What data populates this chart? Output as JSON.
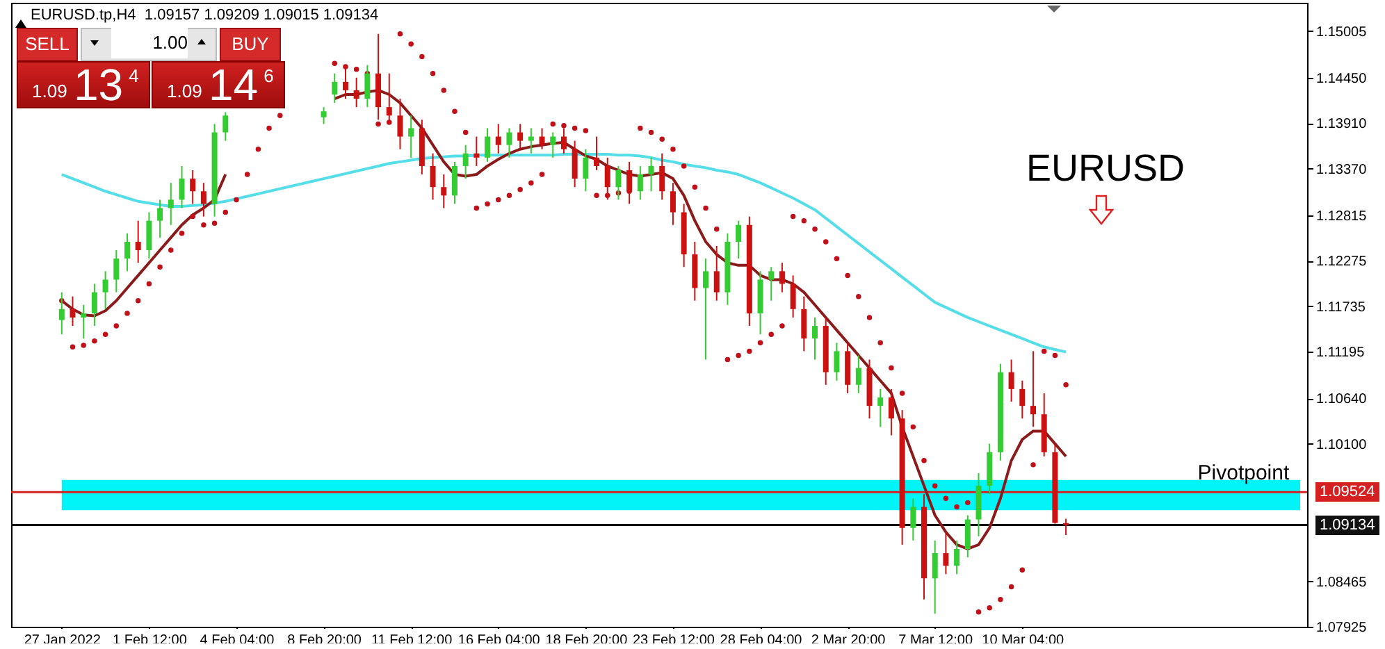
{
  "chart_data": {
    "type": "candlestick",
    "title": "EURUSD.tp,H4  1.09157 1.09209 1.09015 1.09134",
    "categories": [
      "27 Jan 2022",
      null,
      null,
      null,
      null,
      null,
      null,
      null,
      "1 Feb 12:00",
      null,
      null,
      null,
      null,
      null,
      null,
      null,
      "4 Feb 04:00",
      null,
      null,
      null,
      null,
      null,
      null,
      null,
      "8 Feb 20:00",
      null,
      null,
      null,
      null,
      null,
      null,
      null,
      "11 Feb 12:00",
      null,
      null,
      null,
      null,
      null,
      null,
      null,
      "16 Feb 04:00",
      null,
      null,
      null,
      null,
      null,
      null,
      null,
      "18 Feb 20:00",
      null,
      null,
      null,
      null,
      null,
      null,
      null,
      "23 Feb 12:00",
      null,
      null,
      null,
      null,
      null,
      null,
      null,
      "28 Feb 04:00",
      null,
      null,
      null,
      null,
      null,
      null,
      null,
      "2 Mar 20:00",
      null,
      null,
      null,
      null,
      null,
      null,
      null,
      "7 Mar 12:00",
      null,
      null,
      null,
      null,
      null,
      null,
      null,
      "10 Mar 04:00",
      null,
      null,
      null,
      null
    ],
    "ohlc": [
      [
        1.1157,
        1.119,
        1.114,
        1.117
      ],
      [
        1.117,
        1.1185,
        1.115,
        1.116
      ],
      [
        1.116,
        1.1175,
        1.1135,
        1.1165
      ],
      [
        1.1165,
        1.12,
        1.115,
        1.119
      ],
      [
        1.119,
        1.1215,
        1.117,
        1.1205
      ],
      [
        1.1205,
        1.124,
        1.119,
        1.123
      ],
      [
        1.123,
        1.126,
        1.1215,
        1.125
      ],
      [
        1.125,
        1.1275,
        1.1225,
        1.124
      ],
      [
        1.124,
        1.1285,
        1.123,
        1.1275
      ],
      [
        1.1275,
        1.13,
        1.1255,
        1.129
      ],
      [
        1.129,
        1.132,
        1.127,
        1.13
      ],
      [
        1.13,
        1.134,
        1.129,
        1.1325
      ],
      [
        1.1325,
        1.1335,
        1.1295,
        1.131
      ],
      [
        1.131,
        1.132,
        1.128,
        1.1295
      ],
      [
        1.1295,
        1.139,
        1.128,
        1.138
      ],
      [
        1.138,
        1.1404,
        1.137,
        1.14
      ],
      null,
      null,
      null,
      null,
      null,
      null,
      null,
      null,
      [
        1.1398,
        1.141,
        1.139,
        1.1405
      ],
      [
        1.1425,
        1.145,
        1.1415,
        1.144
      ],
      [
        1.144,
        1.146,
        1.142,
        1.143
      ],
      [
        1.143,
        1.1445,
        1.141,
        1.142
      ],
      [
        1.142,
        1.146,
        1.141,
        1.145
      ],
      [
        1.145,
        1.1497,
        1.1395,
        1.141
      ],
      [
        1.141,
        1.145,
        1.139,
        1.14
      ],
      [
        1.14,
        1.142,
        1.136,
        1.1375
      ],
      [
        1.1375,
        1.14,
        1.135,
        1.1385
      ],
      [
        1.1385,
        1.1395,
        1.133,
        1.134
      ],
      [
        1.134,
        1.1355,
        1.13,
        1.1315
      ],
      [
        1.1315,
        1.133,
        1.129,
        1.1305
      ],
      [
        1.1305,
        1.1345,
        1.1295,
        1.134
      ],
      [
        1.134,
        1.1365,
        1.1325,
        1.1355
      ],
      [
        1.1355,
        1.1375,
        1.134,
        1.135
      ],
      [
        1.135,
        1.1385,
        1.1345,
        1.1375
      ],
      [
        1.1375,
        1.139,
        1.1355,
        1.1365
      ],
      [
        1.1365,
        1.1385,
        1.135,
        1.138
      ],
      [
        1.138,
        1.139,
        1.136,
        1.137
      ],
      [
        1.137,
        1.1385,
        1.1355,
        1.1375
      ],
      [
        1.1375,
        1.1385,
        1.136,
        1.1365
      ],
      [
        1.1365,
        1.138,
        1.135,
        1.1375
      ],
      [
        1.1375,
        1.1385,
        1.1355,
        1.136
      ],
      [
        1.136,
        1.137,
        1.1315,
        1.1325
      ],
      [
        1.1325,
        1.136,
        1.131,
        1.135
      ],
      [
        1.135,
        1.1375,
        1.1335,
        1.134
      ],
      [
        1.134,
        1.135,
        1.13,
        1.1315
      ],
      [
        1.1315,
        1.134,
        1.13,
        1.1335
      ],
      [
        1.1335,
        1.1345,
        1.1295,
        1.131
      ],
      [
        1.131,
        1.134,
        1.13,
        1.133
      ],
      [
        1.133,
        1.135,
        1.131,
        1.134
      ],
      [
        1.134,
        1.1355,
        1.13,
        1.131
      ],
      [
        1.131,
        1.132,
        1.127,
        1.1285
      ],
      [
        1.1285,
        1.1295,
        1.122,
        1.1235
      ],
      [
        1.1235,
        1.125,
        1.118,
        1.1195
      ],
      [
        1.1195,
        1.123,
        1.111,
        1.1215
      ],
      [
        1.1215,
        1.1245,
        1.118,
        1.119
      ],
      [
        1.119,
        1.126,
        1.1175,
        1.125
      ],
      [
        1.125,
        1.1275,
        1.123,
        1.127
      ],
      [
        1.127,
        1.128,
        1.115,
        1.1165
      ],
      [
        1.1165,
        1.1215,
        1.114,
        1.1205
      ],
      [
        1.1205,
        1.122,
        1.118,
        1.1215
      ],
      [
        1.1215,
        1.1225,
        1.119,
        1.12
      ],
      [
        1.12,
        1.121,
        1.116,
        1.117
      ],
      [
        1.117,
        1.1185,
        1.112,
        1.1135
      ],
      [
        1.1135,
        1.116,
        1.111,
        1.115
      ],
      [
        1.115,
        1.116,
        1.108,
        1.1095
      ],
      [
        1.1095,
        1.113,
        1.1085,
        1.112
      ],
      [
        1.112,
        1.113,
        1.107,
        1.108
      ],
      [
        1.108,
        1.1115,
        1.107,
        1.11
      ],
      [
        1.11,
        1.111,
        1.104,
        1.1055
      ],
      [
        1.1055,
        1.1075,
        1.103,
        1.1065
      ],
      [
        1.1065,
        1.1075,
        1.102,
        1.104
      ],
      [
        1.104,
        1.105,
        1.089,
        1.091
      ],
      [
        1.091,
        1.0945,
        1.0895,
        1.0935
      ],
      [
        1.0935,
        1.095,
        1.0825,
        1.085
      ],
      [
        1.085,
        1.0895,
        1.0808,
        1.088
      ],
      [
        1.088,
        1.0905,
        1.0855,
        1.0865
      ],
      [
        1.0865,
        1.0895,
        1.0855,
        1.0885
      ],
      [
        1.0885,
        1.0925,
        1.0875,
        1.092
      ],
      [
        1.092,
        1.0975,
        1.09,
        1.096
      ],
      [
        1.096,
        1.101,
        1.095,
        1.1
      ],
      [
        1.1,
        1.1105,
        1.099,
        1.1095
      ],
      [
        1.1095,
        1.111,
        1.106,
        1.1075
      ],
      [
        1.1075,
        1.1085,
        1.104,
        1.1055
      ],
      [
        1.1055,
        1.112,
        1.103,
        1.1045
      ],
      [
        1.1045,
        1.107,
        1.0995,
        1.1
      ],
      [
        1.1,
        1.101,
        1.0915,
        1.0916
      ],
      [
        1.09157,
        1.09209,
        1.09015,
        1.09134
      ]
    ],
    "colors": [
      "#33cc33",
      "#cc1111",
      "#33cc33",
      "#33cc33",
      "#33cc33",
      "#33cc33",
      "#33cc33",
      "#cc1111",
      "#33cc33",
      "#33cc33",
      "#33cc33",
      "#33cc33",
      "#cc1111",
      "#cc1111",
      "#33cc33",
      "#33cc33",
      null,
      null,
      null,
      null,
      null,
      null,
      null,
      null,
      "#33cc33",
      "#33cc33",
      "#cc1111",
      "#cc1111",
      "#33cc33",
      "#cc1111",
      "#cc1111",
      "#cc1111",
      "#33cc33",
      "#cc1111",
      "#cc1111",
      "#cc1111",
      "#33cc33",
      "#33cc33",
      "#cc1111",
      "#33cc33",
      "#cc1111",
      "#33cc33",
      "#cc1111",
      "#33cc33",
      "#cc1111",
      "#33cc33",
      "#cc1111",
      "#cc1111",
      "#33cc33",
      "#cc1111",
      "#cc1111",
      "#33cc33",
      "#cc1111",
      "#33cc33",
      "#33cc33",
      "#cc1111",
      "#cc1111",
      "#cc1111",
      "#cc1111",
      "#33cc33",
      "#cc1111",
      "#33cc33",
      "#33cc33",
      "#cc1111",
      "#33cc33",
      "#33cc33",
      "#cc1111",
      "#cc1111",
      "#cc1111",
      "#33cc33",
      "#cc1111",
      "#33cc33",
      "#cc1111",
      "#33cc33",
      "#cc1111",
      "#33cc33",
      "#cc1111",
      "#cc1111",
      "#33cc33",
      "#cc1111",
      "#33cc33",
      "#cc1111",
      "#33cc33",
      "#33cc33",
      "#33cc33",
      "#33cc33",
      "#33cc33",
      "#cc1111",
      "#cc1111",
      "#cc1111",
      "#cc1111",
      "#cc1111",
      "#cc1111"
    ],
    "series": [
      {
        "type": "line",
        "color": "#55dde8",
        "values": [
          1.133,
          1.1325,
          1.132,
          1.1315,
          1.131,
          1.1306,
          1.1302,
          1.1298,
          1.1296,
          1.1294,
          1.1292,
          1.1292,
          1.1293,
          1.1294,
          1.1296,
          1.1298,
          1.1301,
          1.1304,
          1.1307,
          1.131,
          1.1313,
          1.1316,
          1.1319,
          1.1322,
          1.1325,
          1.1328,
          1.1331,
          1.1334,
          1.1337,
          1.134,
          1.1343,
          1.1345,
          1.1347,
          1.1349,
          1.135,
          1.1351,
          1.1352,
          1.1352,
          1.1353,
          1.1353,
          1.1353,
          1.1353,
          1.1353,
          1.1353,
          1.1353,
          1.1353,
          1.1354,
          1.1354,
          1.1354,
          1.1354,
          1.1354,
          1.1353,
          1.1353,
          1.1352,
          1.135,
          1.1347,
          1.1345,
          1.1342,
          1.134,
          1.1338,
          1.1335,
          1.1333,
          1.133,
          1.1325,
          1.132,
          1.1314,
          1.1308,
          1.1302,
          1.1295,
          1.1288,
          1.1278,
          1.1268,
          1.1258,
          1.1248,
          1.1238,
          1.1228,
          1.1218,
          1.1208,
          1.1198,
          1.1188,
          1.1178,
          1.1172,
          1.1166,
          1.116,
          1.1155,
          1.115,
          1.1145,
          1.114,
          1.1135,
          1.113,
          1.1125,
          1.1122,
          1.1119
        ]
      },
      {
        "type": "line",
        "color": "#8b1a1a",
        "values": [
          1.118,
          1.117,
          1.1163,
          1.1162,
          1.1168,
          1.118,
          1.1195,
          1.121,
          1.1225,
          1.124,
          1.1255,
          1.127,
          1.1282,
          1.129,
          1.13,
          1.133,
          null,
          null,
          null,
          null,
          null,
          null,
          null,
          null,
          null,
          1.142,
          1.1425,
          1.1425,
          1.1428,
          1.143,
          1.1425,
          1.1415,
          1.14,
          1.1385,
          1.1365,
          1.1345,
          1.133,
          1.1328,
          1.133,
          1.134,
          1.1348,
          1.1355,
          1.136,
          1.1363,
          1.1365,
          1.1367,
          1.1368,
          1.136,
          1.1352,
          1.1348,
          1.134,
          1.1335,
          1.133,
          1.1328,
          1.133,
          1.1332,
          1.1325,
          1.1305,
          1.1275,
          1.125,
          1.1235,
          1.1225,
          1.1222,
          1.1222,
          1.121,
          1.1205,
          1.1205,
          1.12,
          1.119,
          1.1175,
          1.116,
          1.1145,
          1.113,
          1.1115,
          1.11,
          1.1085,
          1.107,
          1.103,
          1.0995,
          1.096,
          1.0925,
          1.0905,
          1.089,
          1.0885,
          1.089,
          1.091,
          1.0945,
          1.099,
          1.1015,
          1.1025,
          1.1025,
          1.101,
          1.0995
        ]
      },
      {
        "type": "scatter",
        "color": "#c0101a",
        "marker": "circle",
        "values": [
          1.118,
          1.1125,
          1.1127,
          1.1132,
          1.114,
          1.115,
          1.1165,
          1.118,
          1.12,
          1.122,
          1.124,
          1.126,
          1.128,
          1.127,
          1.1272,
          1.1285,
          1.13,
          1.133,
          1.136,
          1.1385,
          1.14,
          null,
          null,
          null,
          null,
          1.1462,
          1.1458,
          1.1455,
          1.145,
          1.139,
          1.1392,
          1.1497,
          1.1485,
          1.147,
          1.145,
          1.143,
          1.1405,
          1.138,
          1.129,
          1.1295,
          1.13,
          1.1305,
          1.1312,
          1.132,
          1.133,
          1.139,
          1.1388,
          1.1385,
          1.1382,
          1.1305,
          1.1305,
          1.1308,
          1.131,
          1.1385,
          1.138,
          1.1372,
          1.136,
          1.134,
          1.1315,
          1.129,
          1.1265,
          1.111,
          1.1115,
          1.112,
          1.113,
          1.114,
          1.115,
          1.128,
          1.1275,
          1.1265,
          1.125,
          1.123,
          1.121,
          1.1185,
          1.116,
          1.113,
          1.11,
          1.107,
          1.103,
          1.099,
          1.096,
          1.0945,
          1.0935,
          1.094,
          1.081,
          1.0815,
          1.0825,
          1.084,
          1.086,
          1.0985,
          1.112,
          1.1115,
          1.108
        ]
      }
    ],
    "ylim": [
      1.07925,
      1.1534
    ],
    "yticks": [
      {
        "value": 1.15005,
        "label": "1.15005"
      },
      {
        "value": 1.1445,
        "label": "1.14450"
      },
      {
        "value": 1.1391,
        "label": "1.13910"
      },
      {
        "value": 1.1337,
        "label": "1.13370"
      },
      {
        "value": 1.12815,
        "label": "1.12815"
      },
      {
        "value": 1.12275,
        "label": "1.12275"
      },
      {
        "value": 1.11735,
        "label": "1.11735"
      },
      {
        "value": 1.11195,
        "label": "1.11195"
      },
      {
        "value": 1.1064,
        "label": "1.10640"
      },
      {
        "value": 1.101,
        "label": "1.10100"
      },
      {
        "value": 1.08465,
        "label": "1.08465"
      },
      {
        "value": 1.07925,
        "label": "1.07925"
      }
    ],
    "bands": [
      {
        "axis": "y",
        "from": 1.0931,
        "to": 1.0967,
        "color": "#00f4f8"
      }
    ],
    "ref_lines": [
      {
        "axis": "y",
        "value": 1.09524,
        "label": "1.09524",
        "color": "#d42020"
      },
      {
        "axis": "y",
        "value": 1.09134,
        "label": "1.09134",
        "color": "#111111"
      }
    ],
    "annotations": [
      {
        "text": "Pivotpoint",
        "y": 1.09524
      },
      "EURUSD",
      "SELL",
      "1.00",
      "BUY",
      "1.09",
      "13$^{4}$",
      "1.09",
      "14$^{6}$"
    ],
    "grid": false
  }
}
